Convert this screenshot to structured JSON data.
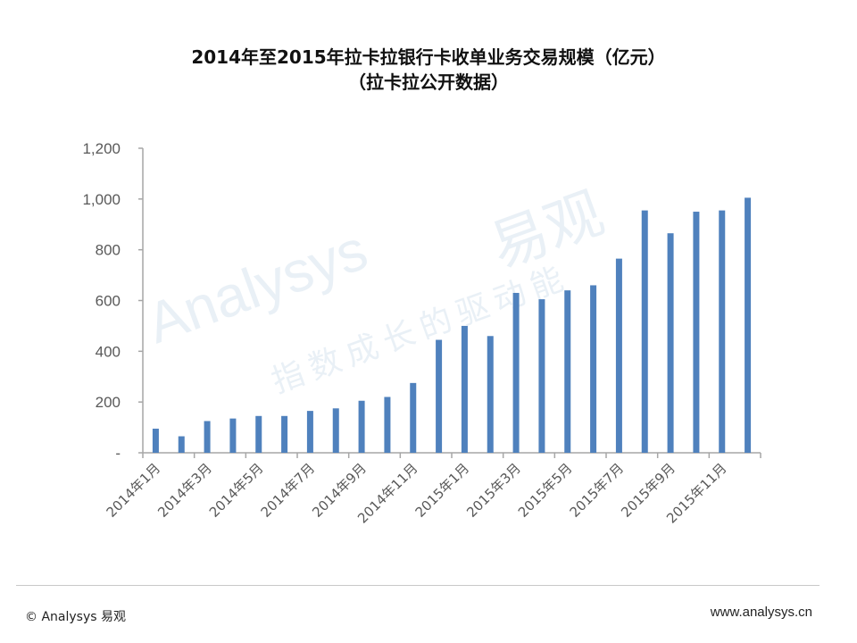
{
  "title_line1": "2014年至2015年拉卡拉银行卡收单业务交易规模（亿元）",
  "title_line2": "（拉卡拉公开数据）",
  "watermark": {
    "latin": "Analysys",
    "cjk": "易观",
    "slogan": "指数成长的驱动能"
  },
  "footer": {
    "copyright": "© Analysys 易观",
    "url": "www.analysys.cn"
  },
  "colors": {
    "bar": "#4f81bd",
    "axis": "#a6a6a6"
  },
  "chart_data": {
    "type": "bar",
    "title": "2014年至2015年拉卡拉银行卡收单业务交易规模（亿元）",
    "subtitle": "（拉卡拉公开数据）",
    "xlabel": "",
    "ylabel": "",
    "ylim": [
      0,
      1200
    ],
    "yticks": [
      0,
      200,
      400,
      600,
      800,
      1000,
      1200
    ],
    "ytick_labels": [
      "-",
      "200",
      "400",
      "600",
      "800",
      "1,000",
      "1,200"
    ],
    "grid": false,
    "legend": "none",
    "categories": [
      "2014年1月",
      "2014年2月",
      "2014年3月",
      "2014年4月",
      "2014年5月",
      "2014年6月",
      "2014年7月",
      "2014年8月",
      "2014年9月",
      "2014年10月",
      "2014年11月",
      "2014年12月",
      "2015年1月",
      "2015年2月",
      "2015年3月",
      "2015年4月",
      "2015年5月",
      "2015年6月",
      "2015年7月",
      "2015年8月",
      "2015年9月",
      "2015年10月",
      "2015年11月",
      "2015年12月"
    ],
    "shown_xtick_labels": [
      "2014年1月",
      "2014年3月",
      "2014年5月",
      "2014年7月",
      "2014年9月",
      "2014年11月",
      "2015年1月",
      "2015年3月",
      "2015年5月",
      "2015年7月",
      "2015年9月",
      "2015年11月"
    ],
    "values": [
      95,
      65,
      125,
      135,
      145,
      145,
      165,
      175,
      205,
      220,
      275,
      445,
      500,
      460,
      630,
      605,
      640,
      660,
      765,
      955,
      865,
      950,
      955,
      1005
    ]
  }
}
